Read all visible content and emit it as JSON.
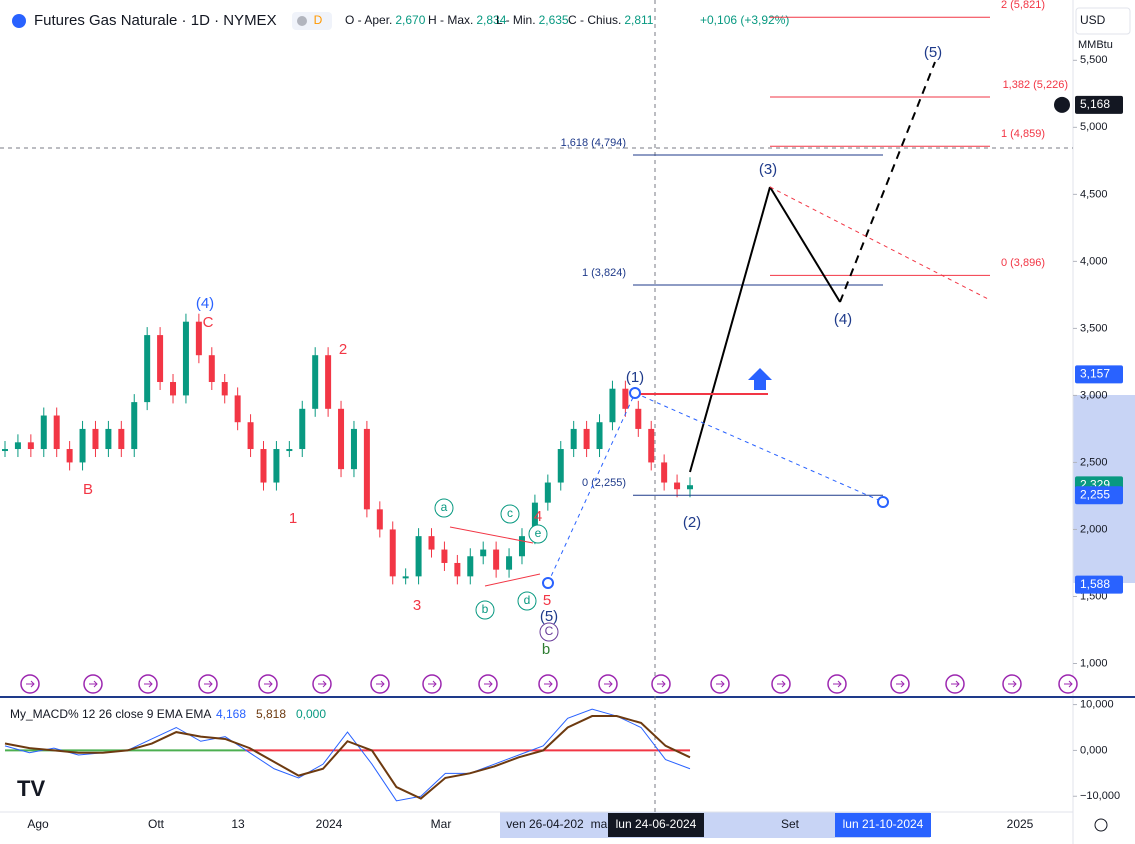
{
  "header": {
    "title": "Futures Gas Naturale · 1D · NYMEX",
    "badge": "D",
    "ohlc": [
      {
        "label": "O - Aper.",
        "value": "2,670"
      },
      {
        "label": "H - Max.",
        "value": "2,834"
      },
      {
        "label": "L - Min.",
        "value": "2,635"
      },
      {
        "label": "C - Chius.",
        "value": "2,811"
      }
    ],
    "change": "+0,106 (+3,92%)"
  },
  "currency": "USD",
  "unit": "MMBtu",
  "price_axis": {
    "ylim": [
      0.75,
      5.95
    ],
    "ticks": [
      {
        "value": 1,
        "label": "1,000"
      },
      {
        "value": 1.5,
        "label": "1,500"
      },
      {
        "value": 2,
        "label": "2,000"
      },
      {
        "value": 2.5,
        "label": "2,500"
      },
      {
        "value": 3,
        "label": "3,000"
      },
      {
        "value": 3.5,
        "label": "3,500"
      },
      {
        "value": 4,
        "label": "4,000"
      },
      {
        "value": 4.5,
        "label": "4,500"
      },
      {
        "value": 5,
        "label": "5,000"
      },
      {
        "value": 5.5,
        "label": "5,500"
      }
    ],
    "badges": [
      {
        "value": 5.168,
        "label": "5,168"
      },
      {
        "value": 3.157,
        "label": "3,157"
      },
      {
        "value": 2.329,
        "label": "2,329"
      },
      {
        "value": 2.255,
        "label": "2,255"
      },
      {
        "value": 1.588,
        "label": "1,588"
      }
    ]
  },
  "time_axis": [
    "Ago",
    "Ott",
    "13",
    "2024",
    "Mar",
    "ven 26-04-202",
    "ma",
    "lun 24-06-2024",
    "Set",
    "lun 21-10-2024",
    "2025"
  ],
  "price": {
    "values": [
      2.6,
      2.65,
      2.6,
      2.85,
      2.6,
      2.5,
      2.75,
      2.6,
      2.75,
      2.6,
      2.95,
      3.45,
      3.1,
      3.0,
      3.55,
      3.3,
      3.1,
      3.0,
      2.8,
      2.6,
      2.35,
      2.6,
      2.6,
      2.9,
      3.3,
      2.9,
      2.45,
      2.75,
      2.15,
      2.0,
      1.65,
      1.65,
      1.95,
      1.85,
      1.75,
      1.65,
      1.8,
      1.85,
      1.7,
      1.8,
      1.95,
      2.2,
      2.35,
      2.6,
      2.75,
      2.6,
      2.8,
      3.05,
      2.9,
      2.75,
      2.5,
      2.35,
      2.3,
      2.33
    ]
  },
  "wave_labels": [
    "(4)",
    "C",
    "B",
    "2",
    "1",
    "3",
    "a",
    "b",
    "c",
    "d",
    "e",
    "4",
    "5",
    "(5)",
    "C",
    "b",
    "(1)",
    "(2)",
    "(3)",
    "(4)",
    "(5)"
  ],
  "fib_levels": [
    {
      "label": "2 (5,821)",
      "value": 5.821
    },
    {
      "label": "1,382 (5,226)",
      "value": 5.226
    },
    {
      "label": "1 (4,859)",
      "value": 4.859
    },
    {
      "label": "0 (3,896)",
      "value": 3.896
    },
    {
      "label": "1,618 (4,794)",
      "value": 4.794
    },
    {
      "label": "1 (3,824)",
      "value": 3.824
    },
    {
      "label": "0 (2,255)",
      "value": 2.255
    }
  ],
  "macd": {
    "title": "My_MACD% 12 26 close 9 EMA EMA",
    "readouts": [
      "4,168",
      "5,818",
      "0,000"
    ],
    "ylim": [
      -13000,
      11000
    ],
    "ticks": [
      {
        "value": 10000,
        "label": "10,000"
      },
      {
        "value": 0,
        "label": "0,000"
      },
      {
        "value": -10000,
        "label": "−10,000"
      }
    ],
    "macd": [
      1000,
      -500,
      500,
      -1000,
      -500,
      0,
      2500,
      5000,
      2000,
      3000,
      -500,
      -4000,
      -6000,
      -3000,
      4000,
      -3000,
      -11000,
      -10000,
      -5000,
      -5000,
      -3000,
      -1000,
      1000,
      7000,
      9000,
      7500,
      5000,
      -2000,
      -4000
    ],
    "signal": [
      1500,
      500,
      0,
      -500,
      -500,
      0,
      1500,
      4000,
      3000,
      2500,
      500,
      -2500,
      -5500,
      -4000,
      2000,
      0,
      -8000,
      -10500,
      -6000,
      -5000,
      -3500,
      -1500,
      0,
      5000,
      7500,
      7500,
      6000,
      1000,
      -1500
    ]
  }
}
